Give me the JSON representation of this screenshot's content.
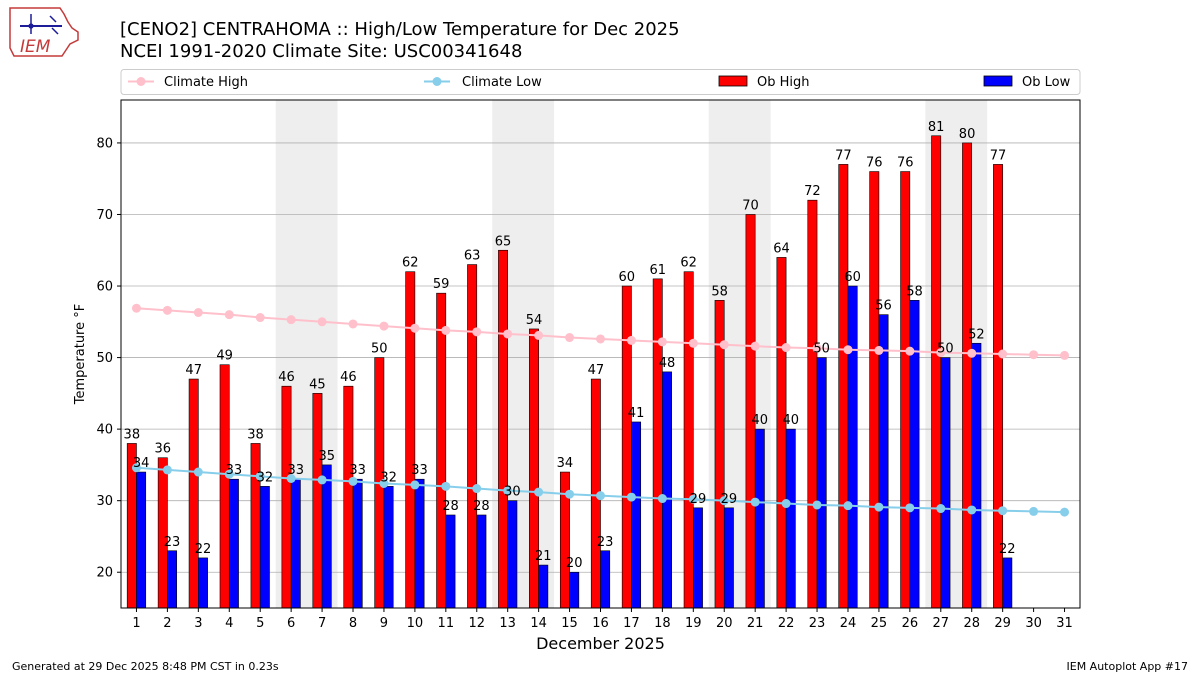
{
  "header": {
    "title_line1": "[CENO2] CENTRAHOMA :: High/Low Temperature for Dec 2025",
    "title_line2": "NCEI 1991-2020 Climate Site: USC00341648",
    "logo_text": "IEM"
  },
  "footer": {
    "left": "Generated at 29 Dec 2025 8:48 PM CST in 0.23s",
    "right": "IEM Autoplot App #17"
  },
  "colors": {
    "ob_high": "#ff0000",
    "ob_low": "#0000ff",
    "climate_high": "#ffc0cb",
    "climate_low": "#87ceeb",
    "weekend_shade": "#eeeeee",
    "grid": "#b0b0b0"
  },
  "chart_data": {
    "type": "bar",
    "xlabel": "December 2025",
    "ylabel": "Temperature °F",
    "xlim": [
      0.5,
      31.5
    ],
    "ylim": [
      15,
      86
    ],
    "grid": "y",
    "legend_position": "top",
    "x": [
      1,
      2,
      3,
      4,
      5,
      6,
      7,
      8,
      9,
      10,
      11,
      12,
      13,
      14,
      15,
      16,
      17,
      18,
      19,
      20,
      21,
      22,
      23,
      24,
      25,
      26,
      27,
      28,
      29,
      30,
      31
    ],
    "yticks": [
      20,
      30,
      40,
      50,
      60,
      70,
      80
    ],
    "shaded_days": [
      [
        6,
        7
      ],
      [
        13,
        14
      ],
      [
        20,
        21
      ],
      [
        27,
        28
      ]
    ],
    "series": [
      {
        "name": "Ob High",
        "kind": "bar",
        "values": [
          38,
          36,
          47,
          49,
          38,
          46,
          45,
          46,
          50,
          62,
          59,
          63,
          65,
          54,
          34,
          47,
          60,
          61,
          62,
          58,
          70,
          64,
          72,
          77,
          76,
          76,
          81,
          80,
          77,
          null,
          null
        ]
      },
      {
        "name": "Ob Low",
        "kind": "bar",
        "values": [
          34,
          23,
          22,
          33,
          32,
          33,
          35,
          33,
          32,
          33,
          28,
          28,
          30,
          21,
          20,
          23,
          41,
          48,
          29,
          29,
          40,
          40,
          50,
          60,
          56,
          58,
          50,
          52,
          22,
          null,
          null
        ]
      },
      {
        "name": "Climate High",
        "kind": "line",
        "values": [
          56.9,
          56.6,
          56.3,
          56.0,
          55.6,
          55.3,
          55.0,
          54.7,
          54.4,
          54.1,
          53.8,
          53.6,
          53.3,
          53.1,
          52.8,
          52.6,
          52.4,
          52.2,
          52.0,
          51.8,
          51.6,
          51.4,
          51.3,
          51.1,
          51.0,
          50.9,
          50.7,
          50.6,
          50.5,
          50.4,
          50.3
        ]
      },
      {
        "name": "Climate Low",
        "kind": "line",
        "values": [
          34.6,
          34.3,
          34.0,
          33.7,
          33.4,
          33.1,
          32.9,
          32.7,
          32.4,
          32.2,
          32.0,
          31.7,
          31.4,
          31.2,
          30.9,
          30.7,
          30.5,
          30.3,
          30.2,
          30.0,
          29.8,
          29.6,
          29.4,
          29.3,
          29.1,
          29.0,
          28.9,
          28.7,
          28.6,
          28.5,
          28.4
        ]
      }
    ]
  }
}
